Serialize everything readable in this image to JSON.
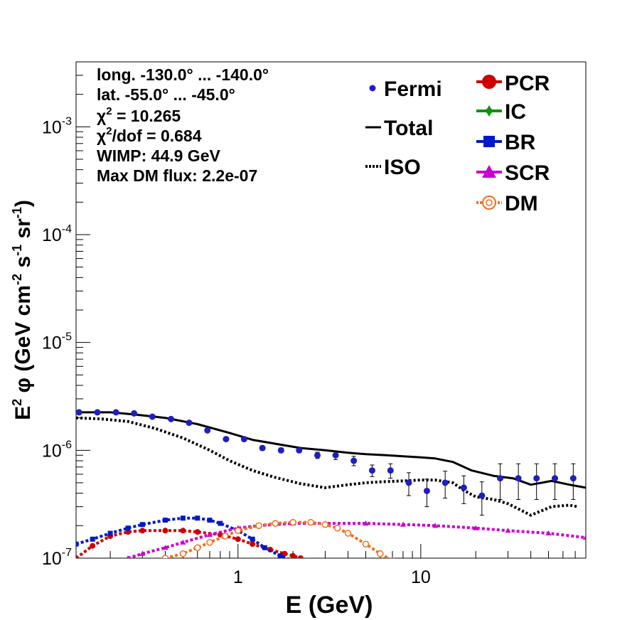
{
  "chart_data": {
    "type": "line",
    "xscale": "log",
    "yscale": "log",
    "xlim": [
      0.13,
      80
    ],
    "ylim": [
      1e-07,
      0.004
    ],
    "xlabel": "E (GeV)",
    "ylabel": {
      "a": "E",
      "b": "2",
      "c": " φ (GeV cm",
      "d": "-2",
      "e": " s",
      "f": "-1",
      "g": " sr",
      "h": "-1",
      "i": ")"
    },
    "x_ticklabels": [
      {
        "v": 1,
        "t": "1"
      },
      {
        "v": 10,
        "t": "10"
      }
    ],
    "y_ticklabels": [
      {
        "v": 1e-07,
        "m": "10",
        "e": "-7"
      },
      {
        "v": 1e-06,
        "m": "10",
        "e": "-6"
      },
      {
        "v": 1e-05,
        "m": "10",
        "e": "-5"
      },
      {
        "v": 0.0001,
        "m": "10",
        "e": "-4"
      },
      {
        "v": 0.001,
        "m": "10",
        "e": "-3"
      }
    ],
    "info": {
      "line1": "long. -130.0° ... -140.0°",
      "line2": "lat. -55.0° ... -45.0°",
      "chi2_sym": "χ",
      "chi2_sup": "2",
      "chi2_val": " = 10.265",
      "chidof_val": "/dof = 0.684",
      "line5": "WIMP: 44.9 GeV",
      "line6": "Max DM flux: 2.2e-07"
    },
    "legend_left": {
      "fermi": "Fermi",
      "total": "Total",
      "iso": "ISO"
    },
    "legend_right": {
      "pcr": "PCR",
      "ic": "IC",
      "br": "BR",
      "scr": "SCR",
      "dm": "DM"
    },
    "colors": {
      "fermi": "#1f1fbf",
      "pcr": "#cc0000",
      "ic": "#109010",
      "br": "#0018cc",
      "scr": "#cc00cc",
      "dm": "#f07020"
    },
    "fermi": {
      "x": [
        0.135,
        0.17,
        0.215,
        0.27,
        0.34,
        0.43,
        0.54,
        0.68,
        0.86,
        1.08,
        1.36,
        1.72,
        2.16,
        2.72,
        3.42,
        4.3,
        5.42,
        6.83,
        8.6,
        10.8,
        13.6,
        17.2,
        21.6,
        27.2,
        34.2,
        43.0,
        54.2,
        68.3
      ],
      "y": [
        2.25e-06,
        2.25e-06,
        2.25e-06,
        2.2e-06,
        2.05e-06,
        1.95e-06,
        1.8e-06,
        1.53e-06,
        1.27e-06,
        1.27e-06,
        1.05e-06,
        1e-06,
        1e-06,
        9e-07,
        9e-07,
        8e-07,
        6.5e-07,
        6.5e-07,
        5e-07,
        4.2e-07,
        5e-07,
        4.5e-07,
        3.8e-07,
        5.5e-07,
        5.5e-07,
        5.5e-07,
        5.5e-07,
        5.5e-07
      ],
      "err": [
        5e-08,
        5e-08,
        5e-08,
        5e-08,
        5e-08,
        5e-08,
        5e-08,
        5e-08,
        5e-08,
        5e-08,
        5e-08,
        5e-08,
        5e-08,
        6e-08,
        8e-08,
        8e-08,
        8e-08,
        1e-07,
        1.2e-07,
        1.2e-07,
        1.4e-07,
        1.3e-07,
        1.3e-07,
        2e-07,
        2e-07,
        2e-07,
        2e-07,
        2e-07
      ]
    },
    "series": [
      {
        "key": "total",
        "x": [
          0.13,
          0.2,
          0.27,
          0.4,
          0.6,
          0.9,
          1.2,
          1.6,
          2.2,
          3,
          4,
          5,
          6.5,
          8,
          10,
          12,
          15,
          19,
          25,
          32,
          40,
          52,
          65,
          80
        ],
        "y": [
          2.25e-06,
          2.25e-06,
          2.15e-06,
          2e-06,
          1.75e-06,
          1.45e-06,
          1.25e-06,
          1.15e-06,
          1.05e-06,
          1e-06,
          9.5e-07,
          9.2e-07,
          9e-07,
          8.8e-07,
          8.6e-07,
          8.4e-07,
          7.8e-07,
          6.5e-07,
          5.8e-07,
          5.5e-07,
          4.8e-07,
          5.2e-07,
          4.8e-07,
          4.5e-07
        ]
      },
      {
        "key": "iso",
        "x": [
          0.13,
          0.18,
          0.25,
          0.35,
          0.5,
          0.7,
          0.9,
          1.2,
          1.6,
          2.2,
          3,
          4,
          5,
          6,
          8,
          10,
          12,
          15,
          17,
          20,
          25,
          30,
          40,
          52,
          65,
          72
        ],
        "y": [
          2e-06,
          1.95e-06,
          1.85e-06,
          1.6e-06,
          1.3e-06,
          1e-06,
          8e-07,
          6.5e-07,
          5.6e-07,
          4.9e-07,
          4.5e-07,
          4.8e-07,
          5e-07,
          5.1e-07,
          5.2e-07,
          5.3e-07,
          5.3e-07,
          5e-07,
          4.3e-07,
          3.7e-07,
          3.5e-07,
          3.2e-07,
          2.5e-07,
          3e-07,
          3.1e-07,
          3e-07
        ]
      },
      {
        "key": "pcr",
        "x": [
          0.13,
          0.16,
          0.2,
          0.25,
          0.3,
          0.4,
          0.5,
          0.6,
          0.8,
          1.0,
          1.2,
          1.5,
          1.8,
          2.0,
          2.2,
          2.4
        ],
        "y": [
          1e-07,
          1.3e-07,
          1.6e-07,
          1.75e-07,
          1.8e-07,
          1.8e-07,
          1.8e-07,
          1.75e-07,
          1.65e-07,
          1.5e-07,
          1.35e-07,
          1.2e-07,
          1.1e-07,
          1.05e-07,
          1e-07,
          9.5e-08
        ]
      },
      {
        "key": "br",
        "x": [
          0.13,
          0.16,
          0.2,
          0.25,
          0.3,
          0.4,
          0.5,
          0.6,
          0.7,
          0.8,
          1.0,
          1.2,
          1.4,
          1.7,
          2.0
        ],
        "y": [
          1.35e-07,
          1.5e-07,
          1.7e-07,
          1.9e-07,
          2.05e-07,
          2.25e-07,
          2.35e-07,
          2.35e-07,
          2.25e-07,
          2.1e-07,
          1.8e-07,
          1.5e-07,
          1.25e-07,
          1.05e-07,
          9.5e-08
        ]
      },
      {
        "key": "scr",
        "x": [
          0.25,
          0.3,
          0.4,
          0.5,
          0.7,
          1.0,
          1.3,
          2,
          3,
          5,
          8,
          12,
          20,
          30,
          50,
          80
        ],
        "y": [
          1e-07,
          1.1e-07,
          1.25e-07,
          1.4e-07,
          1.65e-07,
          1.9e-07,
          2e-07,
          2.1e-07,
          2.1e-07,
          2.1e-07,
          2.05e-07,
          2e-07,
          1.9e-07,
          1.8e-07,
          1.7e-07,
          1.55e-07
        ]
      },
      {
        "key": "dm",
        "x": [
          0.4,
          0.5,
          0.6,
          0.7,
          0.85,
          1.0,
          1.3,
          1.6,
          2.0,
          2.5,
          3.0,
          3.5,
          4.0,
          5.0,
          6.0,
          7.0
        ],
        "y": [
          1e-07,
          1.1e-07,
          1.25e-07,
          1.4e-07,
          1.6e-07,
          1.8e-07,
          2e-07,
          2.1e-07,
          2.15e-07,
          2.15e-07,
          2.05e-07,
          1.9e-07,
          1.7e-07,
          1.35e-07,
          1.1e-07,
          9.5e-08
        ]
      }
    ]
  }
}
